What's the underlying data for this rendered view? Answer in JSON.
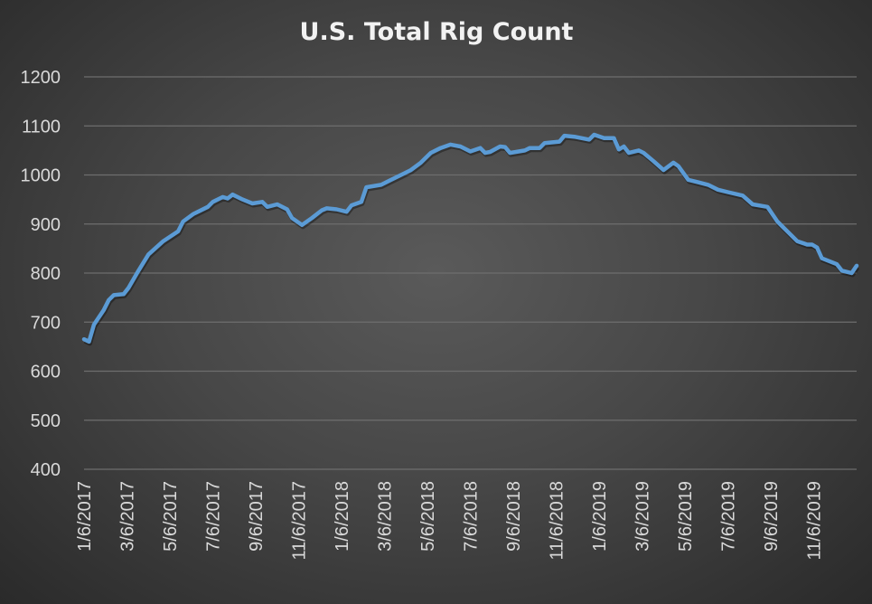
{
  "chart_data": {
    "type": "line",
    "title": "U.S. Total Rig Count",
    "xlabel": "",
    "ylabel": "",
    "ylim": [
      400,
      1200
    ],
    "yticks": [
      400,
      500,
      600,
      700,
      800,
      900,
      1000,
      1100,
      1200
    ],
    "xlim_weeks": [
      0,
      156
    ],
    "x_unit": "weeks since 1/6/2017",
    "xtick_labels": [
      "1/6/2017",
      "3/6/2017",
      "5/6/2017",
      "7/6/2017",
      "9/6/2017",
      "11/6/2017",
      "1/6/2018",
      "3/6/2018",
      "5/6/2018",
      "7/6/2018",
      "9/6/2018",
      "11/6/2018",
      "1/6/2019",
      "3/6/2019",
      "5/6/2019",
      "7/6/2019",
      "9/6/2019",
      "11/6/2019"
    ],
    "grid": true,
    "line_color": "#5b9bd5",
    "series": [
      {
        "name": "U.S. Total Rig Count",
        "x": [
          0,
          1,
          2,
          4,
          5,
          6,
          8,
          9,
          11,
          13,
          16,
          19,
          20,
          22,
          25,
          26,
          28,
          29,
          30,
          32,
          34,
          36,
          37,
          39,
          41,
          42,
          44,
          46,
          48,
          49,
          51,
          53,
          54,
          56,
          57,
          60,
          62,
          64,
          66,
          68,
          70,
          72,
          74,
          76,
          78,
          80,
          81,
          82,
          84,
          85,
          86,
          89,
          90,
          92,
          93,
          96,
          97,
          99,
          102,
          103,
          105,
          107,
          108,
          109,
          110,
          112,
          113,
          115,
          117,
          119,
          120,
          122,
          124,
          126,
          128,
          130,
          133,
          135,
          138,
          140,
          141,
          144,
          146,
          147,
          148,
          149,
          152,
          153,
          155,
          156
        ],
        "values": [
          665,
          660,
          695,
          725,
          745,
          755,
          757,
          770,
          805,
          838,
          865,
          885,
          905,
          920,
          935,
          945,
          955,
          952,
          960,
          950,
          942,
          945,
          935,
          940,
          930,
          912,
          898,
          912,
          928,
          932,
          930,
          925,
          938,
          945,
          975,
          980,
          990,
          1000,
          1010,
          1025,
          1045,
          1055,
          1062,
          1058,
          1048,
          1055,
          1045,
          1047,
          1058,
          1057,
          1045,
          1050,
          1055,
          1055,
          1065,
          1068,
          1080,
          1078,
          1072,
          1082,
          1075,
          1075,
          1052,
          1058,
          1045,
          1050,
          1045,
          1028,
          1010,
          1025,
          1018,
          990,
          985,
          980,
          970,
          965,
          958,
          940,
          935,
          905,
          895,
          865,
          858,
          858,
          852,
          830,
          818,
          805,
          800,
          815
        ]
      }
    ]
  }
}
